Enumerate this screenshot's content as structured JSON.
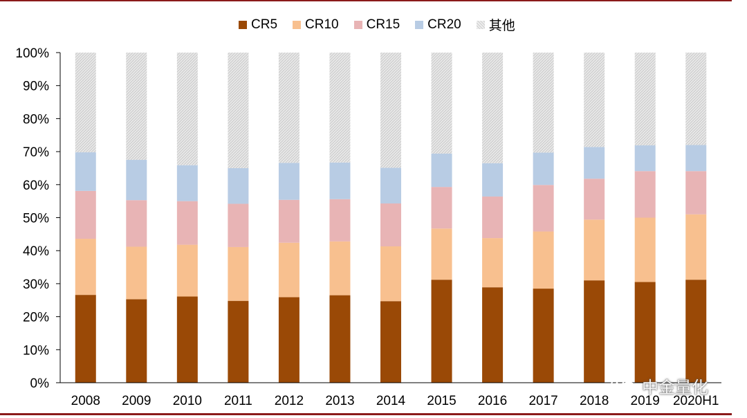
{
  "legend": {
    "items": [
      {
        "label": "CR5",
        "color": "#9a4906"
      },
      {
        "label": "CR10",
        "color": "#f8c08f"
      },
      {
        "label": "CR15",
        "color": "#e8b4b5"
      },
      {
        "label": "CR20",
        "color": "#b8cce4"
      },
      {
        "label": "其他",
        "color": "#d9d9d9"
      }
    ]
  },
  "watermark": {
    "text": "中金量化",
    "icon": "wechat-icon"
  },
  "chart_data": {
    "type": "bar",
    "stacked": true,
    "categories": [
      "2008",
      "2009",
      "2010",
      "2011",
      "2012",
      "2013",
      "2014",
      "2015",
      "2016",
      "2017",
      "2018",
      "2019",
      "2020H1"
    ],
    "series": [
      {
        "name": "CR5",
        "color": "#9a4906",
        "values": [
          26.6,
          25.3,
          26.1,
          24.8,
          25.9,
          26.5,
          24.7,
          31.2,
          28.9,
          28.5,
          31.0,
          30.5,
          31.2
        ]
      },
      {
        "name": "CR10",
        "color": "#f8c08f",
        "values": [
          17.0,
          15.9,
          15.7,
          16.3,
          16.5,
          16.3,
          16.6,
          15.5,
          14.9,
          17.3,
          18.4,
          19.5,
          19.8
        ]
      },
      {
        "name": "CR15",
        "color": "#e8b4b5",
        "values": [
          14.5,
          14.1,
          13.2,
          13.1,
          13.0,
          12.8,
          13.0,
          12.6,
          12.6,
          14.1,
          12.4,
          14.1,
          13.1
        ]
      },
      {
        "name": "CR20",
        "color": "#b8cce4",
        "values": [
          11.7,
          12.2,
          10.9,
          10.8,
          11.2,
          11.1,
          10.8,
          10.1,
          10.1,
          9.8,
          9.6,
          7.8,
          7.9
        ]
      },
      {
        "name": "其他",
        "color": "#d9d9d9",
        "values": [
          30.2,
          32.5,
          34.1,
          35.0,
          33.4,
          33.3,
          34.9,
          30.6,
          33.5,
          30.3,
          28.6,
          28.1,
          28.0
        ]
      }
    ],
    "yticks": [
      "0%",
      "10%",
      "20%",
      "30%",
      "40%",
      "50%",
      "60%",
      "70%",
      "80%",
      "90%",
      "100%"
    ],
    "ylim": [
      0,
      100
    ],
    "legend_position": "top-center",
    "grid": false
  }
}
